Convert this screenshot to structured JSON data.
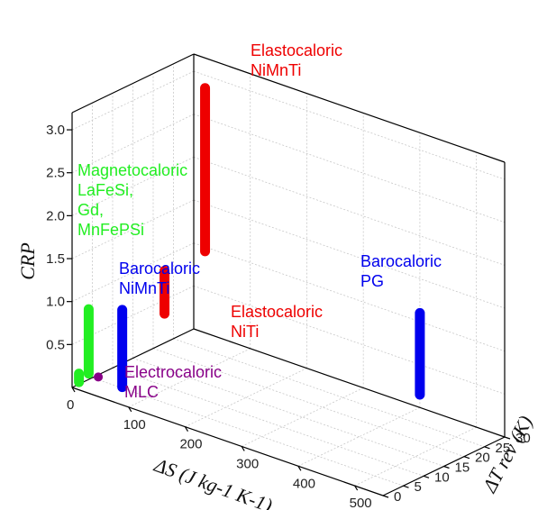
{
  "chart_data": {
    "type": "bar3d",
    "title": "",
    "axes": {
      "x": {
        "label": "ΔS (J kg-1 K-1)",
        "ticks": [
          "0",
          "100",
          "200",
          "300",
          "400",
          "500"
        ]
      },
      "y": {
        "label": "ΔT rev (K)",
        "ticks": [
          "0",
          "5",
          "10",
          "15",
          "20",
          "25",
          "30"
        ]
      },
      "z": {
        "label": "CRP",
        "ticks": [
          "0.5",
          "1.0",
          "1.5",
          "2.0",
          "2.5",
          "3.0"
        ]
      }
    },
    "grid": true,
    "series": [
      {
        "name": "Magnetocaloric",
        "color": "#22ee22",
        "bars": [
          {
            "dS": 5,
            "dT": 1,
            "crp_low": 0.05,
            "crp_high": 0.15
          },
          {
            "dS": 15,
            "dT": 2,
            "crp_low": 0.15,
            "crp_high": 0.9
          }
        ]
      },
      {
        "name": "Barocaloric NiMnTi",
        "color": "#0000ee",
        "bars": [
          {
            "dS": 60,
            "dT": 4,
            "crp_low": 0.05,
            "crp_high": 0.95
          }
        ]
      },
      {
        "name": "Elastocaloric NiTi",
        "color": "#ee0000",
        "bars": [
          {
            "dS": 20,
            "dT": 20,
            "crp_low": 0.45,
            "crp_high": 0.95
          }
        ]
      },
      {
        "name": "Elastocaloric NiMnTi",
        "color": "#ee0000",
        "bars": [
          {
            "dS": 20,
            "dT": 30,
            "crp_low": 0.95,
            "crp_high": 2.85
          }
        ]
      },
      {
        "name": "Barocaloric PG",
        "color": "#0000ee",
        "bars": [
          {
            "dS": 400,
            "dT": 30,
            "crp_low": 0.15,
            "crp_high": 1.1
          }
        ]
      },
      {
        "name": "Electrocaloric MLC",
        "color": "#880088",
        "points": [
          {
            "dS": 32,
            "dT": 2,
            "crp": 0.15
          }
        ]
      }
    ],
    "annotations": [
      {
        "lines": [
          "Magnetocaloric",
          "LaFeSi,",
          "Gd,",
          "MnFePSi"
        ],
        "color": "#22ee22"
      },
      {
        "lines": [
          "Barocaloric",
          "NiMnTi"
        ],
        "color": "#0000ee"
      },
      {
        "lines": [
          "Elastocaloric",
          "NiTi"
        ],
        "color": "#ee0000"
      },
      {
        "lines": [
          "Elastocaloric",
          "NiMnTi"
        ],
        "color": "#ee0000"
      },
      {
        "lines": [
          "Barocaloric",
          "PG"
        ],
        "color": "#0000ee"
      },
      {
        "lines": [
          "Electrocaloric",
          "MLC"
        ],
        "color": "#880088"
      }
    ]
  }
}
